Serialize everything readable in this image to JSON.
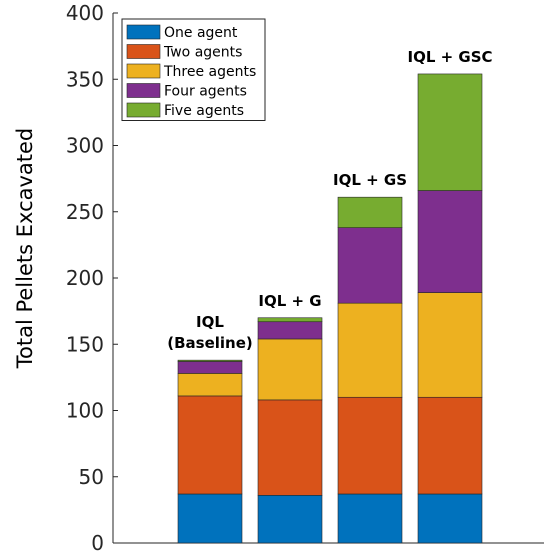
{
  "chart_data": {
    "type": "bar",
    "stacked": true,
    "categories": [
      [
        "IQL",
        "(Baseline)"
      ],
      [
        "IQL + G"
      ],
      [
        "IQL + GS"
      ],
      [
        "IQL + GSC"
      ]
    ],
    "series": [
      {
        "name": "One agent",
        "color": "#0072bd",
        "values": [
          37,
          36,
          37,
          37
        ]
      },
      {
        "name": "Two agents",
        "color": "#d95319",
        "values": [
          74,
          72,
          73,
          73
        ]
      },
      {
        "name": "Three agents",
        "color": "#edb120",
        "values": [
          17,
          46,
          71,
          79
        ]
      },
      {
        "name": "Four agents",
        "color": "#7e2f8e",
        "values": [
          9,
          13,
          57,
          77
        ]
      },
      {
        "name": "Five agents",
        "color": "#77ac30",
        "values": [
          1,
          3,
          23,
          88
        ]
      }
    ],
    "ylabel": "Total Pellets Excavated",
    "xlabel": "",
    "ylim": [
      0,
      400
    ],
    "yticks": [
      0,
      50,
      100,
      150,
      200,
      250,
      300,
      350,
      400
    ],
    "legend_position": "top-left",
    "grid": false
  }
}
